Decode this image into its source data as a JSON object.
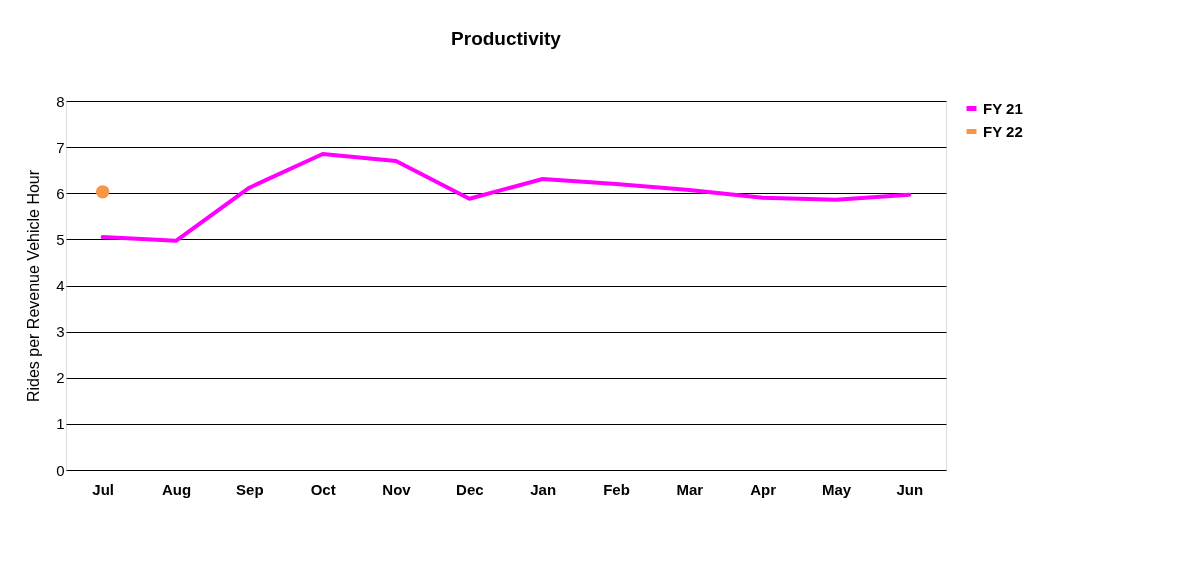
{
  "chart_data": {
    "type": "line",
    "title": "Productivity",
    "ylabel": "Rides per Revenue Vehicle Hour",
    "categories": [
      "Jul",
      "Aug",
      "Sep",
      "Oct",
      "Nov",
      "Dec",
      "Jan",
      "Feb",
      "Mar",
      "Apr",
      "May",
      "Jun"
    ],
    "series": [
      {
        "name": "FY 21",
        "color": "#ff00ff",
        "marker": "none",
        "values": [
          5.05,
          4.97,
          6.12,
          6.85,
          6.7,
          5.88,
          6.31,
          6.2,
          6.07,
          5.9,
          5.86,
          5.97
        ]
      },
      {
        "name": "FY 22",
        "color": "#f79646",
        "marker": "circle",
        "values": [
          6.03,
          null,
          null,
          null,
          null,
          null,
          null,
          null,
          null,
          null,
          null,
          null
        ]
      }
    ],
    "ylim": [
      0,
      8
    ],
    "yticks": [
      0,
      1,
      2,
      3,
      4,
      5,
      6,
      7,
      8
    ],
    "grid": "y",
    "legend": "right"
  }
}
